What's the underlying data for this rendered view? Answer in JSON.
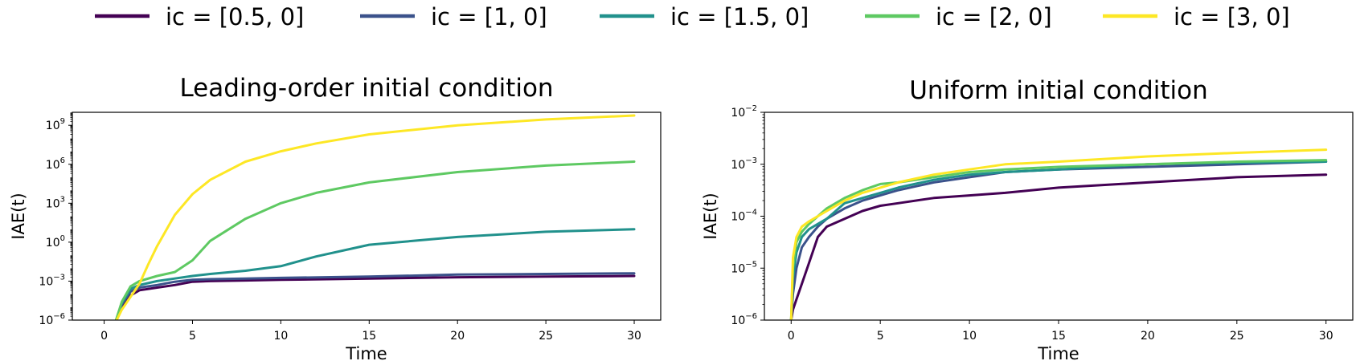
{
  "legend": [
    {
      "label": "ic = [0.5, 0]",
      "color": "#440154"
    },
    {
      "label": "ic = [1, 0]",
      "color": "#3b528b"
    },
    {
      "label": "ic = [1.5, 0]",
      "color": "#21918c"
    },
    {
      "label": "ic = [2, 0]",
      "color": "#5ec962"
    },
    {
      "label": "ic = [3, 0]",
      "color": "#fde725"
    }
  ],
  "chart_data": [
    {
      "type": "line",
      "title": "Leading-order initial condition",
      "xlabel": "Time",
      "ylabel": "IAE(t)",
      "yscale": "log",
      "xlim": [
        -1.8,
        31.5
      ],
      "ylim_log10": [
        -6,
        10
      ],
      "xticks": [
        "0",
        "5",
        "10",
        "15",
        "20",
        "25",
        "30"
      ],
      "yticks": [
        {
          "base": "10",
          "exp": "−6",
          "log": -6
        },
        {
          "base": "10",
          "exp": "−3",
          "log": -3
        },
        {
          "base": "10",
          "exp": "0",
          "log": 0
        },
        {
          "base": "10",
          "exp": "3",
          "log": 3
        },
        {
          "base": "10",
          "exp": "6",
          "log": 6
        },
        {
          "base": "10",
          "exp": "9",
          "log": 9
        }
      ],
      "series": [
        {
          "name": "ic = [0.5, 0]",
          "x": [
            0.6,
            1.0,
            1.5,
            2,
            3,
            4,
            5,
            6,
            8,
            10,
            15,
            20,
            25,
            30
          ],
          "log10_values": [
            -6.3,
            -5.0,
            -4.1,
            -3.7,
            -3.5,
            -3.3,
            -3.05,
            -3.0,
            -2.95,
            -2.9,
            -2.8,
            -2.7,
            -2.65,
            -2.6
          ]
        },
        {
          "name": "ic = [1, 0]",
          "x": [
            0.6,
            1.0,
            1.5,
            2,
            3,
            4,
            5,
            6,
            8,
            10,
            15,
            20,
            25,
            30
          ],
          "log10_values": [
            -6.3,
            -4.8,
            -3.8,
            -3.5,
            -3.3,
            -3.05,
            -2.9,
            -2.85,
            -2.8,
            -2.75,
            -2.65,
            -2.5,
            -2.45,
            -2.4
          ]
        },
        {
          "name": "ic = [1.5, 0]",
          "x": [
            0.6,
            1.0,
            1.5,
            2,
            3,
            4,
            5,
            6,
            8,
            10,
            12,
            15,
            20,
            25,
            30
          ],
          "log10_values": [
            -6.3,
            -4.7,
            -3.6,
            -3.3,
            -3.0,
            -2.8,
            -2.6,
            -2.45,
            -2.2,
            -1.85,
            -1.1,
            -0.2,
            0.4,
            0.8,
            1.0
          ]
        },
        {
          "name": "ic = [2, 0]",
          "x": [
            0.6,
            1.0,
            1.5,
            2,
            3,
            4,
            5,
            6,
            8,
            10,
            12,
            15,
            20,
            25,
            30
          ],
          "log10_values": [
            -6.3,
            -4.6,
            -3.4,
            -3.0,
            -2.6,
            -2.3,
            -1.4,
            0.1,
            1.8,
            3.0,
            3.8,
            4.6,
            5.4,
            5.9,
            6.2
          ]
        },
        {
          "name": "ic = [3, 0]",
          "x": [
            0.6,
            1.0,
            1.5,
            2,
            2.5,
            3,
            4,
            5,
            6,
            8,
            10,
            12,
            15,
            20,
            25,
            30
          ],
          "log10_values": [
            -6.3,
            -5.2,
            -4.2,
            -3.2,
            -1.7,
            -0.3,
            2.1,
            3.7,
            4.8,
            6.2,
            7.0,
            7.6,
            8.3,
            9.0,
            9.45,
            9.75
          ]
        }
      ]
    },
    {
      "type": "line",
      "title": "Uniform initial condition",
      "xlabel": "Time",
      "ylabel": "IAE(t)",
      "yscale": "log",
      "xlim": [
        -1.5,
        31.5
      ],
      "ylim_log10": [
        -6,
        -2
      ],
      "xticks": [
        "0",
        "5",
        "10",
        "15",
        "20",
        "25",
        "30"
      ],
      "yticks": [
        {
          "base": "10",
          "exp": "−6",
          "log": -6
        },
        {
          "base": "10",
          "exp": "−5",
          "log": -5
        },
        {
          "base": "10",
          "exp": "−4",
          "log": -4
        },
        {
          "base": "10",
          "exp": "−3",
          "log": -3
        },
        {
          "base": "10",
          "exp": "−2",
          "log": -2
        }
      ],
      "series": [
        {
          "name": "ic = [0.5, 0]",
          "x": [
            0,
            0.1,
            0.3,
            0.6,
            1.0,
            1.5,
            2,
            3,
            4,
            5,
            6,
            8,
            10,
            12,
            15,
            20,
            25,
            30
          ],
          "log10_values": [
            -6.0,
            -5.8,
            -5.6,
            -5.3,
            -4.9,
            -4.4,
            -4.2,
            -4.05,
            -3.9,
            -3.8,
            -3.75,
            -3.65,
            -3.6,
            -3.55,
            -3.45,
            -3.35,
            -3.25,
            -3.2
          ]
        },
        {
          "name": "ic = [1, 0]",
          "x": [
            0,
            0.1,
            0.3,
            0.6,
            1.0,
            1.5,
            2,
            3,
            4,
            5,
            6,
            8,
            10,
            12,
            15,
            20,
            25,
            30
          ],
          "log10_values": [
            -6.0,
            -5.5,
            -5.0,
            -4.6,
            -4.4,
            -4.2,
            -4.05,
            -3.85,
            -3.7,
            -3.6,
            -3.5,
            -3.35,
            -3.25,
            -3.15,
            -3.1,
            -3.05,
            -3.0,
            -2.95
          ]
        },
        {
          "name": "ic = [1.5, 0]",
          "x": [
            0,
            0.1,
            0.3,
            0.6,
            1.0,
            1.5,
            2,
            3,
            4,
            5,
            6,
            8,
            10,
            12,
            15,
            20,
            25,
            30
          ],
          "log10_values": [
            -6.0,
            -5.2,
            -4.7,
            -4.4,
            -4.25,
            -4.15,
            -4.05,
            -3.75,
            -3.65,
            -3.55,
            -3.45,
            -3.3,
            -3.2,
            -3.15,
            -3.1,
            -3.0,
            -2.97,
            -2.95
          ]
        },
        {
          "name": "ic = [2, 0]",
          "x": [
            0,
            0.1,
            0.3,
            0.6,
            1.0,
            1.5,
            2,
            3,
            4,
            5,
            6,
            8,
            10,
            12,
            15,
            20,
            25,
            30
          ],
          "log10_values": [
            -6.0,
            -5.0,
            -4.5,
            -4.3,
            -4.15,
            -4.0,
            -3.85,
            -3.65,
            -3.5,
            -3.38,
            -3.35,
            -3.25,
            -3.15,
            -3.1,
            -3.05,
            -3.0,
            -2.95,
            -2.92
          ]
        },
        {
          "name": "ic = [3, 0]",
          "x": [
            0,
            0.1,
            0.3,
            0.6,
            1.0,
            1.5,
            2,
            3,
            4,
            5,
            6,
            8,
            10,
            12,
            15,
            20,
            25,
            30
          ],
          "log10_values": [
            -6.0,
            -4.8,
            -4.4,
            -4.2,
            -4.1,
            -4.0,
            -3.9,
            -3.7,
            -3.55,
            -3.45,
            -3.35,
            -3.2,
            -3.1,
            -3.0,
            -2.95,
            -2.85,
            -2.78,
            -2.72
          ]
        }
      ]
    }
  ]
}
